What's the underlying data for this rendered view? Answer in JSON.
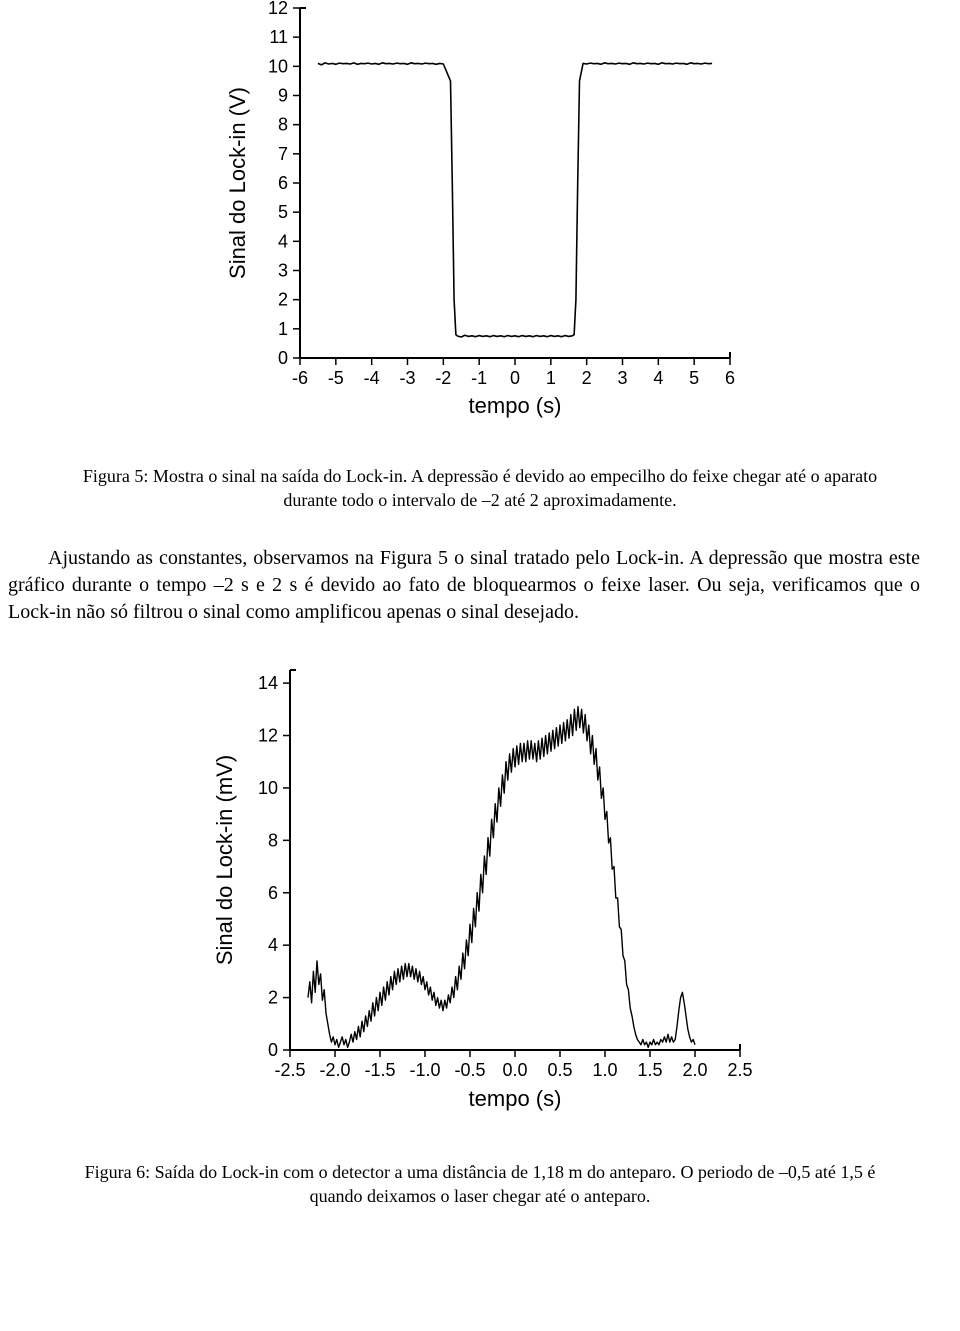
{
  "figure5": {
    "type": "line",
    "ylabel": "Sinal do Lock-in (V)",
    "xlabel": "tempo (s)",
    "label_fontsize": 22,
    "tick_fontsize": 18,
    "xlim": [
      -6,
      6
    ],
    "ylim": [
      0,
      12
    ],
    "xticks": [
      -6,
      -5,
      -4,
      -3,
      -2,
      -1,
      0,
      1,
      2,
      3,
      4,
      5,
      6
    ],
    "yticks": [
      0,
      1,
      2,
      3,
      4,
      5,
      6,
      7,
      8,
      9,
      10,
      11,
      12
    ],
    "line_color": "#000000",
    "line_width": 1.6,
    "background_color": "#ffffff",
    "tick_color": "#000000",
    "noise_amp": 0.12,
    "data": [
      [
        -5.5,
        10.1
      ],
      [
        -5.4,
        10.05
      ],
      [
        -5.3,
        10.12
      ],
      [
        -5.2,
        10.08
      ],
      [
        -5.1,
        10.1
      ],
      [
        -5.0,
        10.07
      ],
      [
        -4.9,
        10.11
      ],
      [
        -4.8,
        10.09
      ],
      [
        -4.7,
        10.1
      ],
      [
        -4.6,
        10.08
      ],
      [
        -4.5,
        10.12
      ],
      [
        -4.4,
        10.07
      ],
      [
        -4.3,
        10.1
      ],
      [
        -4.2,
        10.09
      ],
      [
        -4.1,
        10.11
      ],
      [
        -4.0,
        10.08
      ],
      [
        -3.9,
        10.1
      ],
      [
        -3.8,
        10.07
      ],
      [
        -3.7,
        10.12
      ],
      [
        -3.6,
        10.09
      ],
      [
        -3.5,
        10.1
      ],
      [
        -3.4,
        10.08
      ],
      [
        -3.3,
        10.11
      ],
      [
        -3.2,
        10.09
      ],
      [
        -3.1,
        10.1
      ],
      [
        -3.0,
        10.07
      ],
      [
        -2.9,
        10.12
      ],
      [
        -2.8,
        10.09
      ],
      [
        -2.7,
        10.1
      ],
      [
        -2.6,
        10.08
      ],
      [
        -2.5,
        10.11
      ],
      [
        -2.4,
        10.09
      ],
      [
        -2.3,
        10.1
      ],
      [
        -2.2,
        10.07
      ],
      [
        -2.1,
        10.1
      ],
      [
        -2.0,
        10.08
      ],
      [
        -1.8,
        9.5
      ],
      [
        -1.75,
        6.0
      ],
      [
        -1.7,
        2.0
      ],
      [
        -1.65,
        0.8
      ],
      [
        -1.6,
        0.75
      ],
      [
        -1.5,
        0.72
      ],
      [
        -1.4,
        0.78
      ],
      [
        -1.3,
        0.74
      ],
      [
        -1.2,
        0.76
      ],
      [
        -1.1,
        0.73
      ],
      [
        -1.0,
        0.77
      ],
      [
        -0.9,
        0.74
      ],
      [
        -0.8,
        0.76
      ],
      [
        -0.7,
        0.73
      ],
      [
        -0.6,
        0.77
      ],
      [
        -0.5,
        0.74
      ],
      [
        -0.4,
        0.76
      ],
      [
        -0.3,
        0.73
      ],
      [
        -0.2,
        0.77
      ],
      [
        -0.1,
        0.74
      ],
      [
        0.0,
        0.76
      ],
      [
        0.1,
        0.73
      ],
      [
        0.2,
        0.77
      ],
      [
        0.3,
        0.74
      ],
      [
        0.4,
        0.76
      ],
      [
        0.5,
        0.73
      ],
      [
        0.6,
        0.77
      ],
      [
        0.7,
        0.74
      ],
      [
        0.8,
        0.76
      ],
      [
        0.9,
        0.73
      ],
      [
        1.0,
        0.77
      ],
      [
        1.1,
        0.74
      ],
      [
        1.2,
        0.76
      ],
      [
        1.3,
        0.73
      ],
      [
        1.4,
        0.77
      ],
      [
        1.5,
        0.74
      ],
      [
        1.6,
        0.76
      ],
      [
        1.65,
        0.8
      ],
      [
        1.7,
        2.0
      ],
      [
        1.75,
        6.0
      ],
      [
        1.8,
        9.5
      ],
      [
        1.9,
        10.1
      ],
      [
        2.0,
        10.08
      ],
      [
        2.1,
        10.11
      ],
      [
        2.2,
        10.09
      ],
      [
        2.3,
        10.1
      ],
      [
        2.4,
        10.07
      ],
      [
        2.5,
        10.12
      ],
      [
        2.6,
        10.09
      ],
      [
        2.7,
        10.1
      ],
      [
        2.8,
        10.08
      ],
      [
        2.9,
        10.11
      ],
      [
        3.0,
        10.09
      ],
      [
        3.1,
        10.1
      ],
      [
        3.2,
        10.07
      ],
      [
        3.3,
        10.12
      ],
      [
        3.4,
        10.09
      ],
      [
        3.5,
        10.1
      ],
      [
        3.6,
        10.08
      ],
      [
        3.7,
        10.11
      ],
      [
        3.8,
        10.09
      ],
      [
        3.9,
        10.1
      ],
      [
        4.0,
        10.07
      ],
      [
        4.1,
        10.12
      ],
      [
        4.2,
        10.09
      ],
      [
        4.3,
        10.1
      ],
      [
        4.4,
        10.08
      ],
      [
        4.5,
        10.11
      ],
      [
        4.6,
        10.09
      ],
      [
        4.7,
        10.1
      ],
      [
        4.8,
        10.07
      ],
      [
        4.9,
        10.12
      ],
      [
        5.0,
        10.09
      ],
      [
        5.1,
        10.1
      ],
      [
        5.2,
        10.08
      ],
      [
        5.3,
        10.11
      ],
      [
        5.4,
        10.09
      ],
      [
        5.5,
        10.1
      ]
    ],
    "caption": "Figura 5: Mostra o sinal na saída do Lock-in. A depressão é devido ao empecilho do feixe chegar até o aparato durante todo o intervalo de –2 até 2 aproximadamente."
  },
  "paragraph1": "Ajustando as constantes, observamos na Figura 5 o sinal tratado pelo Lock-in. A depressão que mostra este gráfico durante o tempo –2 s e 2 s é devido ao fato de bloquearmos o feixe laser. Ou seja, verificamos que o Lock-in não só filtrou o sinal como amplificou apenas o sinal desejado.",
  "figure6": {
    "type": "line",
    "ylabel": "Sinal do Lock-in (mV)",
    "xlabel": "tempo (s)",
    "label_fontsize": 22,
    "tick_fontsize": 18,
    "xlim": [
      -2.5,
      2.5
    ],
    "ylim": [
      0,
      14.5
    ],
    "xticks": [
      -2.5,
      -2.0,
      -1.5,
      -1.0,
      -0.5,
      0.0,
      0.5,
      1.0,
      1.5,
      2.0,
      2.5
    ],
    "yticks": [
      0,
      2,
      4,
      6,
      8,
      10,
      12,
      14
    ],
    "line_color": "#000000",
    "line_width": 1.4,
    "background_color": "#ffffff",
    "tick_color": "#000000",
    "data": [
      [
        -2.3,
        2.0
      ],
      [
        -2.28,
        2.6
      ],
      [
        -2.26,
        1.8
      ],
      [
        -2.24,
        3.0
      ],
      [
        -2.22,
        2.2
      ],
      [
        -2.2,
        3.4
      ],
      [
        -2.18,
        2.5
      ],
      [
        -2.16,
        2.9
      ],
      [
        -2.14,
        1.9
      ],
      [
        -2.12,
        2.3
      ],
      [
        -2.1,
        1.4
      ],
      [
        -2.08,
        1.0
      ],
      [
        -2.06,
        0.6
      ],
      [
        -2.04,
        0.3
      ],
      [
        -2.02,
        0.5
      ],
      [
        -2.0,
        0.2
      ],
      [
        -1.98,
        0.4
      ],
      [
        -1.96,
        0.1
      ],
      [
        -1.94,
        0.3
      ],
      [
        -1.92,
        0.5
      ],
      [
        -1.9,
        0.2
      ],
      [
        -1.88,
        0.4
      ],
      [
        -1.86,
        0.1
      ],
      [
        -1.84,
        0.3
      ],
      [
        -1.82,
        0.6
      ],
      [
        -1.8,
        0.3
      ],
      [
        -1.78,
        0.7
      ],
      [
        -1.76,
        0.4
      ],
      [
        -1.74,
        0.9
      ],
      [
        -1.72,
        0.5
      ],
      [
        -1.7,
        1.1
      ],
      [
        -1.68,
        0.7
      ],
      [
        -1.66,
        1.3
      ],
      [
        -1.64,
        0.9
      ],
      [
        -1.62,
        1.5
      ],
      [
        -1.6,
        1.1
      ],
      [
        -1.58,
        1.8
      ],
      [
        -1.56,
        1.3
      ],
      [
        -1.54,
        2.0
      ],
      [
        -1.52,
        1.5
      ],
      [
        -1.5,
        2.2
      ],
      [
        -1.48,
        1.7
      ],
      [
        -1.46,
        2.4
      ],
      [
        -1.44,
        1.9
      ],
      [
        -1.42,
        2.6
      ],
      [
        -1.4,
        2.1
      ],
      [
        -1.38,
        2.8
      ],
      [
        -1.36,
        2.3
      ],
      [
        -1.34,
        3.0
      ],
      [
        -1.32,
        2.5
      ],
      [
        -1.3,
        3.1
      ],
      [
        -1.28,
        2.6
      ],
      [
        -1.26,
        3.2
      ],
      [
        -1.24,
        2.7
      ],
      [
        -1.22,
        3.3
      ],
      [
        -1.2,
        2.8
      ],
      [
        -1.18,
        3.3
      ],
      [
        -1.16,
        2.8
      ],
      [
        -1.14,
        3.2
      ],
      [
        -1.12,
        2.7
      ],
      [
        -1.1,
        3.1
      ],
      [
        -1.08,
        2.6
      ],
      [
        -1.06,
        3.0
      ],
      [
        -1.04,
        2.5
      ],
      [
        -1.02,
        2.8
      ],
      [
        -1.0,
        2.3
      ],
      [
        -0.98,
        2.6
      ],
      [
        -0.96,
        2.1
      ],
      [
        -0.94,
        2.4
      ],
      [
        -0.92,
        1.9
      ],
      [
        -0.9,
        2.2
      ],
      [
        -0.88,
        1.7
      ],
      [
        -0.86,
        2.0
      ],
      [
        -0.84,
        1.6
      ],
      [
        -0.82,
        1.9
      ],
      [
        -0.8,
        1.5
      ],
      [
        -0.78,
        1.9
      ],
      [
        -0.76,
        1.6
      ],
      [
        -0.74,
        2.1
      ],
      [
        -0.72,
        1.8
      ],
      [
        -0.7,
        2.4
      ],
      [
        -0.68,
        2.0
      ],
      [
        -0.66,
        2.8
      ],
      [
        -0.64,
        2.3
      ],
      [
        -0.62,
        3.2
      ],
      [
        -0.6,
        2.7
      ],
      [
        -0.58,
        3.7
      ],
      [
        -0.56,
        3.1
      ],
      [
        -0.54,
        4.2
      ],
      [
        -0.52,
        3.6
      ],
      [
        -0.5,
        4.8
      ],
      [
        -0.48,
        4.1
      ],
      [
        -0.46,
        5.4
      ],
      [
        -0.44,
        4.7
      ],
      [
        -0.42,
        6.0
      ],
      [
        -0.4,
        5.3
      ],
      [
        -0.38,
        6.7
      ],
      [
        -0.36,
        6.0
      ],
      [
        -0.34,
        7.4
      ],
      [
        -0.32,
        6.7
      ],
      [
        -0.3,
        8.1
      ],
      [
        -0.28,
        7.4
      ],
      [
        -0.26,
        8.8
      ],
      [
        -0.24,
        8.1
      ],
      [
        -0.22,
        9.4
      ],
      [
        -0.2,
        8.7
      ],
      [
        -0.18,
        10.0
      ],
      [
        -0.16,
        9.3
      ],
      [
        -0.14,
        10.5
      ],
      [
        -0.12,
        9.8
      ],
      [
        -0.1,
        11.0
      ],
      [
        -0.08,
        10.3
      ],
      [
        -0.06,
        11.3
      ],
      [
        -0.04,
        10.6
      ],
      [
        -0.02,
        11.5
      ],
      [
        0.0,
        10.8
      ],
      [
        0.02,
        11.6
      ],
      [
        0.04,
        10.9
      ],
      [
        0.06,
        11.7
      ],
      [
        0.08,
        11.0
      ],
      [
        0.1,
        11.7
      ],
      [
        0.12,
        11.0
      ],
      [
        0.14,
        11.8
      ],
      [
        0.16,
        11.1
      ],
      [
        0.18,
        11.8
      ],
      [
        0.2,
        11.1
      ],
      [
        0.22,
        11.7
      ],
      [
        0.24,
        11.0
      ],
      [
        0.26,
        11.8
      ],
      [
        0.28,
        11.1
      ],
      [
        0.3,
        11.9
      ],
      [
        0.32,
        11.2
      ],
      [
        0.34,
        12.0
      ],
      [
        0.36,
        11.3
      ],
      [
        0.38,
        12.1
      ],
      [
        0.4,
        11.4
      ],
      [
        0.42,
        12.2
      ],
      [
        0.44,
        11.5
      ],
      [
        0.46,
        12.3
      ],
      [
        0.48,
        11.6
      ],
      [
        0.5,
        12.4
      ],
      [
        0.52,
        11.7
      ],
      [
        0.54,
        12.5
      ],
      [
        0.56,
        11.8
      ],
      [
        0.58,
        12.6
      ],
      [
        0.6,
        11.9
      ],
      [
        0.62,
        12.8
      ],
      [
        0.64,
        12.0
      ],
      [
        0.66,
        13.0
      ],
      [
        0.68,
        12.2
      ],
      [
        0.7,
        13.1
      ],
      [
        0.72,
        12.3
      ],
      [
        0.74,
        13.0
      ],
      [
        0.76,
        12.1
      ],
      [
        0.78,
        12.8
      ],
      [
        0.8,
        11.8
      ],
      [
        0.82,
        12.4
      ],
      [
        0.84,
        11.3
      ],
      [
        0.86,
        12.0
      ],
      [
        0.88,
        10.9
      ],
      [
        0.9,
        11.5
      ],
      [
        0.92,
        10.3
      ],
      [
        0.94,
        10.8
      ],
      [
        0.96,
        9.6
      ],
      [
        0.98,
        10.0
      ],
      [
        1.0,
        8.8
      ],
      [
        1.02,
        9.1
      ],
      [
        1.04,
        7.9
      ],
      [
        1.06,
        8.1
      ],
      [
        1.08,
        6.9
      ],
      [
        1.1,
        7.0
      ],
      [
        1.12,
        5.8
      ],
      [
        1.14,
        5.8
      ],
      [
        1.16,
        4.7
      ],
      [
        1.18,
        4.6
      ],
      [
        1.2,
        3.6
      ],
      [
        1.22,
        3.4
      ],
      [
        1.24,
        2.5
      ],
      [
        1.26,
        2.3
      ],
      [
        1.28,
        1.6
      ],
      [
        1.3,
        1.3
      ],
      [
        1.32,
        0.9
      ],
      [
        1.34,
        0.6
      ],
      [
        1.36,
        0.4
      ],
      [
        1.38,
        0.3
      ],
      [
        1.4,
        0.2
      ],
      [
        1.42,
        0.4
      ],
      [
        1.44,
        0.2
      ],
      [
        1.46,
        0.3
      ],
      [
        1.48,
        0.1
      ],
      [
        1.5,
        0.3
      ],
      [
        1.52,
        0.2
      ],
      [
        1.54,
        0.4
      ],
      [
        1.56,
        0.2
      ],
      [
        1.58,
        0.3
      ],
      [
        1.6,
        0.2
      ],
      [
        1.62,
        0.4
      ],
      [
        1.64,
        0.3
      ],
      [
        1.66,
        0.5
      ],
      [
        1.68,
        0.3
      ],
      [
        1.7,
        0.6
      ],
      [
        1.72,
        0.3
      ],
      [
        1.74,
        0.5
      ],
      [
        1.76,
        0.3
      ],
      [
        1.78,
        0.4
      ],
      [
        1.8,
        0.9
      ],
      [
        1.82,
        1.5
      ],
      [
        1.84,
        2.0
      ],
      [
        1.86,
        2.2
      ],
      [
        1.88,
        1.8
      ],
      [
        1.9,
        1.3
      ],
      [
        1.92,
        0.8
      ],
      [
        1.94,
        0.5
      ],
      [
        1.96,
        0.3
      ],
      [
        1.98,
        0.4
      ],
      [
        2.0,
        0.2
      ]
    ],
    "caption": "Figura 6: Saída do Lock-in com o detector a uma distância de 1,18 m do anteparo. O periodo de –0,5 até 1,5 é quando deixamos o laser chegar até o anteparo."
  }
}
